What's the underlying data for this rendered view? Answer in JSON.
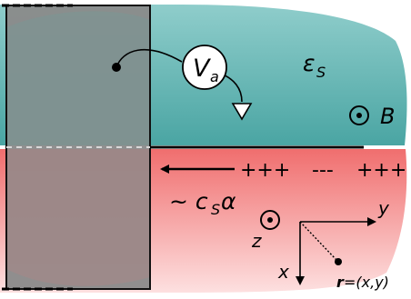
{
  "labels": {
    "voltage": "V",
    "voltage_sub": "a",
    "permittivity": "ε",
    "permittivity_sub": "S",
    "field": "B",
    "charges_left": "+++",
    "charges_mid": "---",
    "charges_right": "+++",
    "speed_prefix": "~ c",
    "speed_sub": "S",
    "speed_suffix": "α",
    "axis_y": "y",
    "axis_z": "z",
    "axis_x": "x",
    "position_vec": "r",
    "position_rest": "=(x,y)"
  },
  "colors": {
    "top_fill": "#4aa5a3",
    "top_fill_light": "#8fcdcb",
    "bottom_fill": "#f28a8a",
    "bottom_fill_light": "#fde0e0",
    "gate_fill": "#7f7f7f",
    "edge": "#000000"
  }
}
